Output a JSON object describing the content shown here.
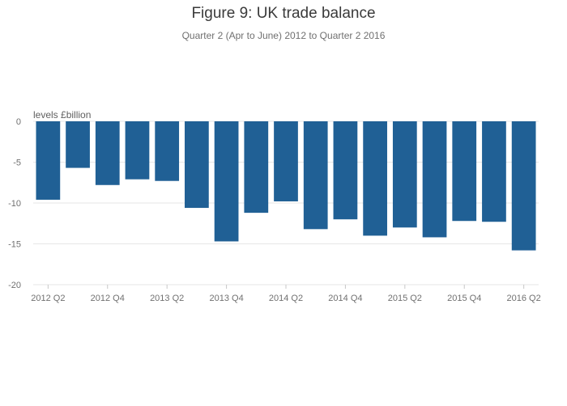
{
  "chart_data": {
    "type": "bar",
    "title": "Figure 9: UK trade balance",
    "subtitle": "Quarter 2 (Apr to June) 2012 to Quarter 2 2016",
    "ylabel": "levels £billion",
    "xlabel": "",
    "ylim": [
      -20,
      0
    ],
    "yticks": [
      0,
      -5,
      -10,
      -15,
      -20
    ],
    "xtick_labels": [
      "2012 Q2",
      "2012 Q4",
      "2013 Q2",
      "2013 Q4",
      "2014 Q2",
      "2014 Q4",
      "2015 Q2",
      "2015 Q4",
      "2016 Q2"
    ],
    "categories": [
      "2012 Q2",
      "2012 Q3",
      "2012 Q4",
      "2013 Q1",
      "2013 Q2",
      "2013 Q3",
      "2013 Q4",
      "2014 Q1",
      "2014 Q2",
      "2014 Q3",
      "2014 Q4",
      "2015 Q1",
      "2015 Q2",
      "2015 Q3",
      "2015 Q4",
      "2016 Q1",
      "2016 Q2"
    ],
    "values": [
      -9.6,
      -5.7,
      -7.8,
      -7.1,
      -7.3,
      -10.6,
      -14.7,
      -11.2,
      -9.8,
      -13.2,
      -12.0,
      -14.0,
      -13.0,
      -14.2,
      -12.2,
      -12.3,
      -15.8
    ],
    "grid": true,
    "legend": "none",
    "colors": {
      "bar": "#206095",
      "grid": "#e6e6e6",
      "zero_line": "#e6e6e6",
      "text": "#707070"
    }
  }
}
